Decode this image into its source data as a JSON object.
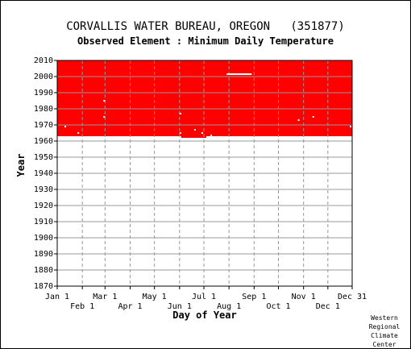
{
  "header": {
    "title": "CORVALLIS WATER BUREAU, OREGON   (351877)",
    "subtitle": "Observed Element : Minimum Daily Temperature"
  },
  "credit": [
    "Western",
    "Regional",
    "Climate",
    "Center"
  ],
  "chart_data": {
    "type": "heatmap",
    "title": "CORVALLIS WATER BUREAU, OREGON   (351877)",
    "subtitle": "Observed Element : Minimum Daily Temperature",
    "xlabel": "Day of Year",
    "ylabel": "Year",
    "xlim": [
      1,
      365
    ],
    "ylim": [
      1870,
      2010
    ],
    "y_ticks": [
      1870,
      1880,
      1890,
      1900,
      1910,
      1920,
      1930,
      1940,
      1950,
      1960,
      1970,
      1980,
      1990,
      2000,
      2010
    ],
    "x_ticks_upper": [
      {
        "label": "Jan 1",
        "day": 1
      },
      {
        "label": "Mar 1",
        "day": 60
      },
      {
        "label": "May 1",
        "day": 121
      },
      {
        "label": "Jul 1",
        "day": 182
      },
      {
        "label": "Sep 1",
        "day": 244
      },
      {
        "label": "Nov 1",
        "day": 305
      },
      {
        "label": "Dec 31",
        "day": 365
      }
    ],
    "x_ticks_lower": [
      {
        "label": "Feb 1",
        "day": 32
      },
      {
        "label": "Apr 1",
        "day": 91
      },
      {
        "label": "Jun 1",
        "day": 152
      },
      {
        "label": "Aug 1",
        "day": 213
      },
      {
        "label": "Oct 1",
        "day": 274
      },
      {
        "label": "Dec 1",
        "day": 335
      }
    ],
    "grid": true,
    "colors": {
      "observed": "#ff0000",
      "missing": "#ffffff",
      "grid": "#999999",
      "background": "#ffffff"
    },
    "observed_block": {
      "start_year": 1962,
      "end_year": 2010,
      "start_day": 1,
      "end_day": 365
    },
    "missing_marks": [
      {
        "day": 210,
        "year": 2001.5,
        "width_days": 31
      },
      {
        "day": 58,
        "year": 1985,
        "width_days": 1
      },
      {
        "day": 58,
        "year": 1975,
        "width_days": 1
      },
      {
        "day": 152,
        "year": 1977,
        "width_days": 1
      },
      {
        "day": 152,
        "year": 1965,
        "width_days": 1
      },
      {
        "day": 10,
        "year": 1969,
        "width_days": 1
      },
      {
        "day": 26,
        "year": 1965,
        "width_days": 2
      },
      {
        "day": 170,
        "year": 1967,
        "width_days": 1
      },
      {
        "day": 179,
        "year": 1965,
        "width_days": 1
      },
      {
        "day": 190,
        "year": 1963.5,
        "width_days": 1
      },
      {
        "day": 298,
        "year": 1973,
        "width_days": 1
      },
      {
        "day": 316,
        "year": 1975,
        "width_days": 1
      },
      {
        "day": 362,
        "year": 1969,
        "width_days": 1
      }
    ],
    "missing_bottom_segments": [
      {
        "start_day": 1,
        "end_day": 154
      },
      {
        "start_day": 185,
        "end_day": 365
      }
    ]
  }
}
